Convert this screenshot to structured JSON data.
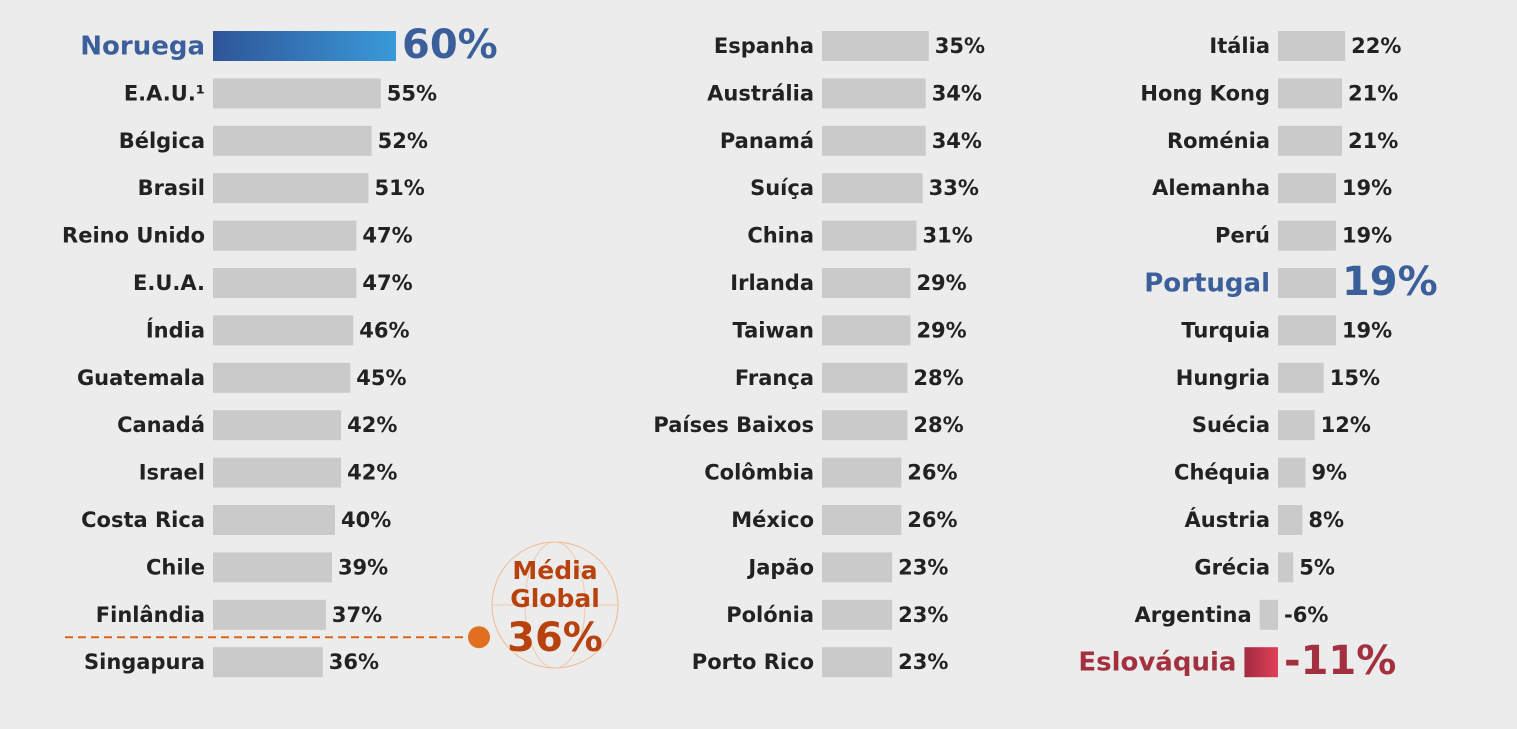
{
  "chart_data": [
    {
      "type": "hbar",
      "color": "#cacaca",
      "text_color": "#222222",
      "categories": [
        "Noruega",
        "E.A.U.¹",
        "Bélgica",
        "Brasil",
        "Reino Unido",
        "E.U.A.",
        "Índia",
        "Guatemala",
        "Canadá",
        "Israel",
        "Costa Rica",
        "Chile",
        "Finlândia",
        "Singapura"
      ],
      "values": [
        60,
        55,
        52,
        51,
        47,
        47,
        46,
        45,
        42,
        42,
        40,
        39,
        37,
        36
      ],
      "value_labels": [
        "60%",
        "55%",
        "52%",
        "51%",
        "47%",
        "47%",
        "46%",
        "45%",
        "42%",
        "42%",
        "40%",
        "39%",
        "37%",
        "36%"
      ],
      "colors": [
        [
          "#2e5597",
          "#3a9ad9"
        ],
        "#cacaca",
        "#cacaca",
        "#cacaca",
        "#cacaca",
        "#cacaca",
        "#cacaca",
        "#cacaca",
        "#cacaca",
        "#cacaca",
        "#cacaca",
        "#cacaca",
        "#cacaca",
        "#cacaca"
      ],
      "label_colors": [
        "#3a5f9a",
        "#222222",
        "#222222",
        "#222222",
        "#222222",
        "#222222",
        "#222222",
        "#222222",
        "#222222",
        "#222222",
        "#222222",
        "#222222",
        "#222222",
        "#222222"
      ],
      "annotation": {
        "lines": [
          "Média",
          "Global"
        ],
        "value": 36,
        "label": "36%",
        "color": "#b8420e"
      }
    },
    {
      "type": "hbar",
      "color": "#cacaca",
      "text_color": "#222222",
      "categories": [
        "Espanha",
        "Austrália",
        "Panamá",
        "Suíça",
        "China",
        "Irlanda",
        "Taiwan",
        "França",
        "Países Baixos",
        "Colômbia",
        "México",
        "Japão",
        "Polónia",
        "Porto Rico"
      ],
      "values": [
        35,
        34,
        34,
        33,
        31,
        29,
        29,
        28,
        28,
        26,
        26,
        23,
        23,
        23
      ],
      "value_labels": [
        "35%",
        "34%",
        "34%",
        "33%",
        "31%",
        "29%",
        "29%",
        "28%",
        "28%",
        "26%",
        "26%",
        "23%",
        "23%",
        "23%"
      ],
      "colors": [
        "#cacaca",
        "#cacaca",
        "#cacaca",
        "#cacaca",
        "#cacaca",
        "#cacaca",
        "#cacaca",
        "#cacaca",
        "#cacaca",
        "#cacaca",
        "#cacaca",
        "#cacaca",
        "#cacaca",
        "#cacaca"
      ],
      "label_colors": [
        "#222222",
        "#222222",
        "#222222",
        "#222222",
        "#222222",
        "#222222",
        "#222222",
        "#222222",
        "#222222",
        "#222222",
        "#222222",
        "#222222",
        "#222222",
        "#222222"
      ]
    },
    {
      "type": "hbar",
      "color": "#cacaca",
      "text_color": "#222222",
      "categories": [
        "Itália",
        "Hong Kong",
        "Roménia",
        "Alemanha",
        "Perú",
        "Portugal",
        "Turquia",
        "Hungria",
        "Suécia",
        "Chéquia",
        "Áustria",
        "Grécia",
        "Argentina",
        "Eslováquia"
      ],
      "values": [
        22,
        21,
        21,
        19,
        19,
        19,
        19,
        15,
        12,
        9,
        8,
        5,
        -6,
        -11
      ],
      "value_labels": [
        "22%",
        "21%",
        "21%",
        "19%",
        "19%",
        "19%",
        "19%",
        "15%",
        "12%",
        "9%",
        "8%",
        "5%",
        "-6%",
        "-11%"
      ],
      "colors": [
        "#cacaca",
        "#cacaca",
        "#cacaca",
        "#cacaca",
        "#cacaca",
        "#cacaca",
        "#cacaca",
        "#cacaca",
        "#cacaca",
        "#cacaca",
        "#cacaca",
        "#cacaca",
        "#cacaca",
        [
          "#a32b3f",
          "#e0405a"
        ]
      ],
      "label_colors": [
        "#222222",
        "#222222",
        "#222222",
        "#222222",
        "#222222",
        "#3a5f9a",
        "#222222",
        "#222222",
        "#222222",
        "#222222",
        "#222222",
        "#222222",
        "#222222",
        "#a3303f"
      ]
    }
  ]
}
